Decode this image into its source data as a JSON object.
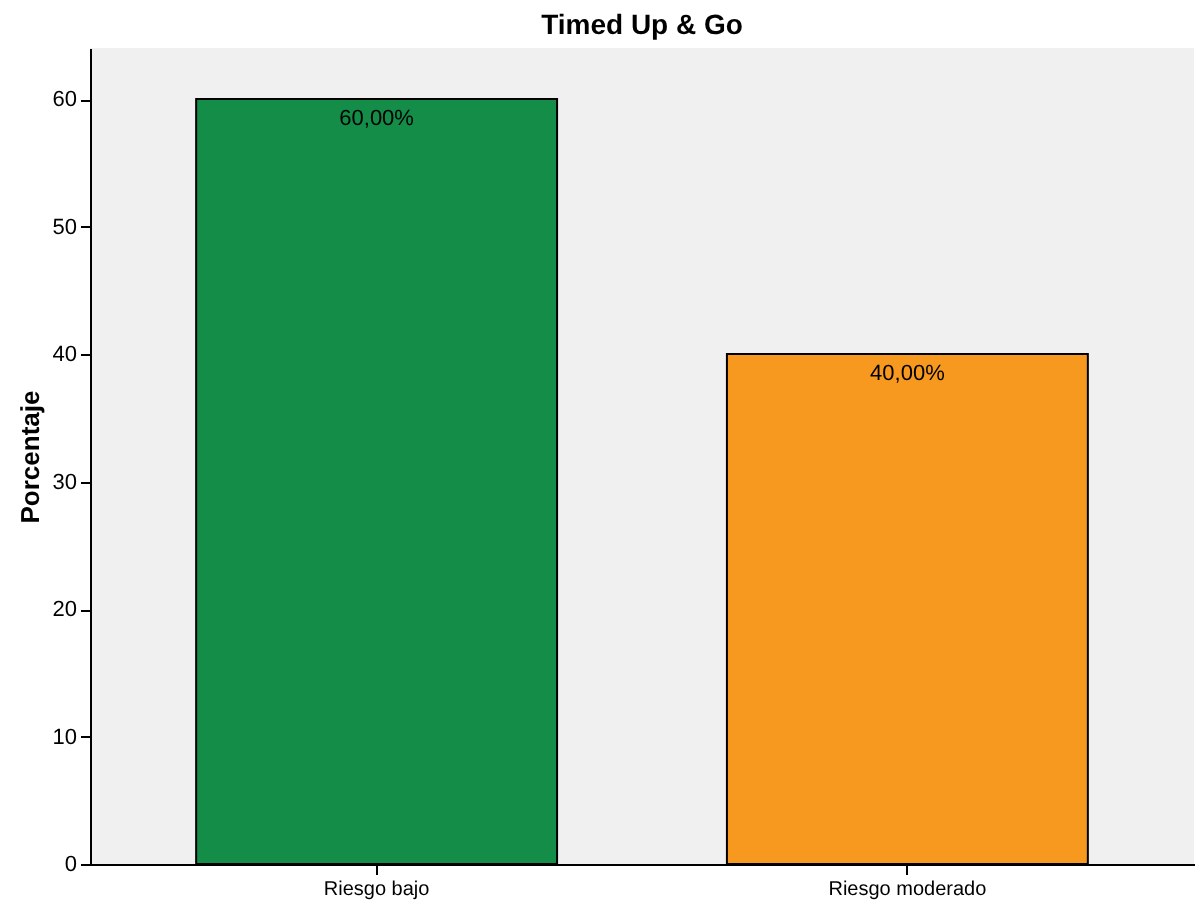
{
  "chart_data": {
    "type": "bar",
    "title": "Timed Up & Go",
    "ylabel": "Porcentaje",
    "categories": [
      "Riesgo bajo",
      "Riesgo moderado"
    ],
    "values": [
      60,
      40
    ],
    "colors": [
      "#138d47",
      "#f7991f"
    ],
    "value_labels": [
      "60,00%",
      "40,00%"
    ],
    "ylim": [
      0,
      64
    ],
    "yticks": [
      0,
      10,
      20,
      30,
      40,
      50,
      60
    ],
    "grid": false
  }
}
